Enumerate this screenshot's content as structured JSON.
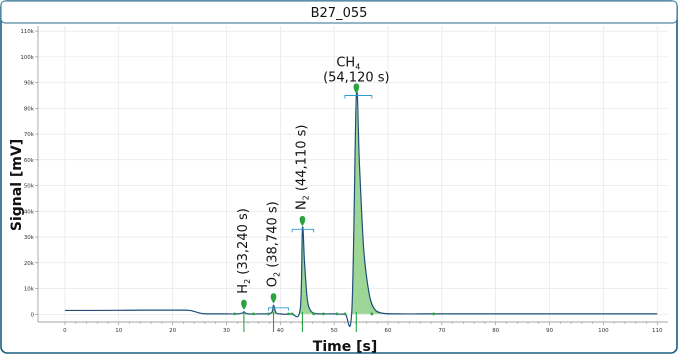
{
  "chart_data": {
    "type": "line",
    "title": "B27_055",
    "xlabel": "Time [s]",
    "ylabel": "Signal [mV]",
    "xlim": [
      -5,
      112
    ],
    "ylim": [
      -3000,
      112000
    ],
    "x_ticks": [
      0,
      10,
      20,
      30,
      40,
      50,
      60,
      70,
      80,
      90,
      100,
      110
    ],
    "y_ticks": [
      0,
      10000,
      20000,
      30000,
      40000,
      50000,
      60000,
      70000,
      80000,
      90000,
      100000,
      110000
    ],
    "y_tick_labels": [
      "0",
      "10k",
      "20k",
      "30k",
      "40k",
      "50k",
      "60k",
      "70k",
      "80k",
      "90k",
      "100k",
      "110k"
    ],
    "grid": true,
    "series": [
      {
        "x": [
          0,
          5,
          10,
          15,
          20,
          23,
          24,
          25,
          26,
          28,
          30,
          32,
          33.0,
          33.24,
          33.5,
          34,
          36,
          38.3,
          38.74,
          39.2,
          40,
          42,
          43.7,
          44.11,
          44.5,
          45,
          45.6,
          46.5,
          48,
          50,
          52,
          53.3,
          54.12,
          54.7,
          55.5,
          56.5,
          57.5,
          59,
          62,
          66,
          70,
          80,
          90,
          100,
          110
        ],
        "y": [
          1500,
          1500,
          1550,
          1600,
          1600,
          1550,
          1100,
          500,
          200,
          150,
          150,
          150,
          500,
          1000,
          500,
          150,
          150,
          500,
          3500,
          600,
          150,
          150,
          2000,
          33500,
          20000,
          6000,
          1500,
          300,
          150,
          150,
          150,
          2000,
          85000,
          58000,
          25000,
          8000,
          2000,
          400,
          150,
          150,
          150,
          150,
          150,
          150,
          150
        ]
      }
    ],
    "annotations": [
      {
        "gas": "H",
        "subscript": "2",
        "rt": "(33,240 s)",
        "x": 33.24,
        "y": 1000
      },
      {
        "gas": "O",
        "subscript": "2",
        "rt": "(38,740 s)",
        "x": 38.74,
        "y": 3500
      },
      {
        "gas": "N",
        "subscript": "2",
        "rt": "(44,110 s)",
        "x": 44.11,
        "y": 33500
      },
      {
        "gas": "CH",
        "subscript": "4",
        "rt": "(54,120 s)",
        "x": 54.12,
        "y": 85000
      }
    ],
    "integration_brackets": [
      {
        "x1": 37.8,
        "x2": 41.5,
        "y": 2500
      },
      {
        "x1": 42.2,
        "x2": 46.2,
        "y": 33000
      },
      {
        "x1": 52.0,
        "x2": 57.0,
        "y": 85000
      }
    ],
    "baseline_markers_x": [
      31.5,
      35.0,
      37.8,
      41.5,
      42.2,
      46.2,
      48.0,
      50.5,
      52.0,
      57.0,
      68.5
    ]
  }
}
